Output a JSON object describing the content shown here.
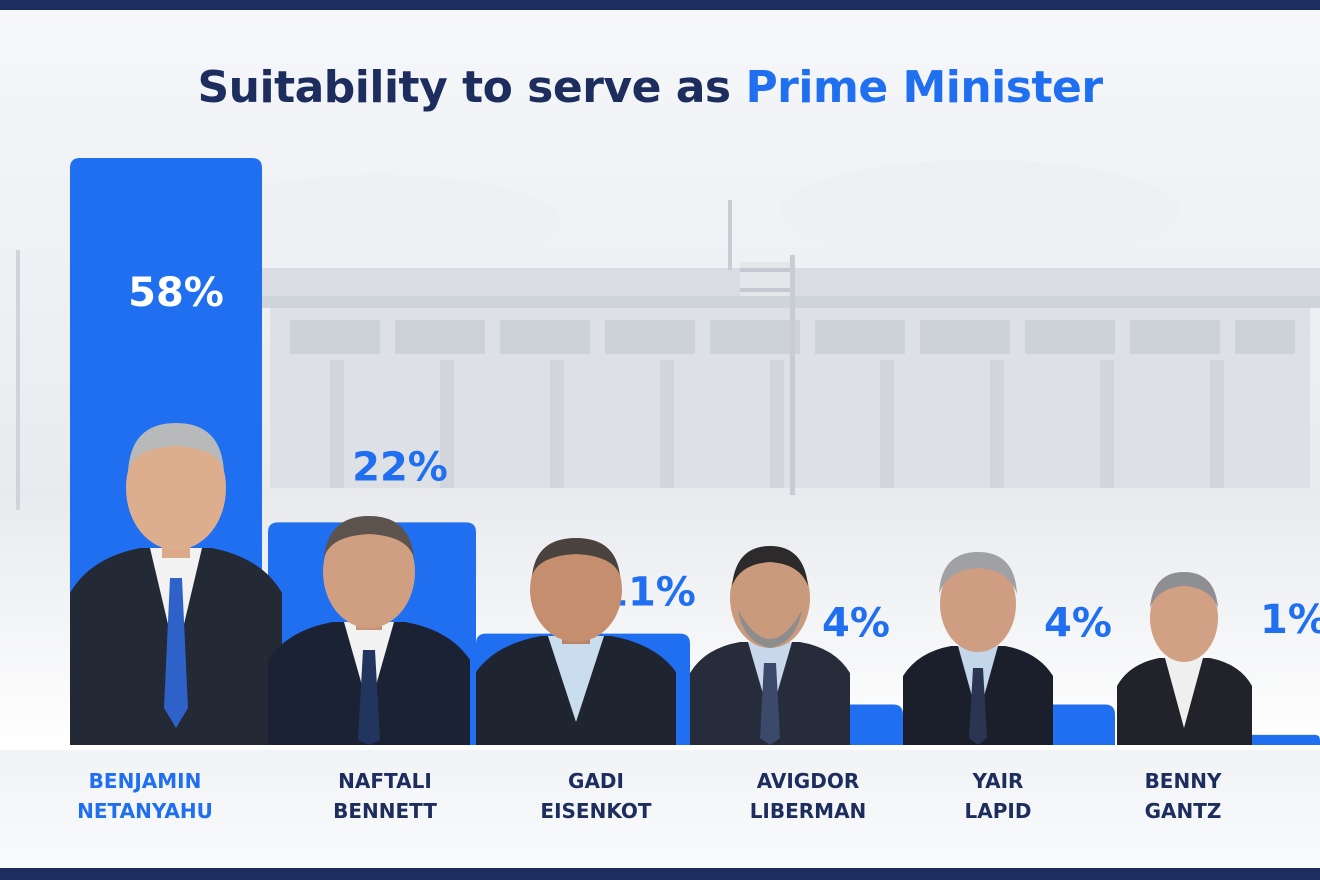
{
  "title": {
    "part1": "Suitability to serve as ",
    "part2": "Prime Minister"
  },
  "colors": {
    "navy": "#1c2d5e",
    "accent_blue": "#1f6ff0",
    "background_tint": "#e6e9ee"
  },
  "chart_data": {
    "type": "bar",
    "title": "Suitability to serve as Prime Minister",
    "categories": [
      "BENJAMIN NETANYAHU",
      "NAFTALI BENNETT",
      "GADI EISENKOT",
      "AVIGDOR LIBERMAN",
      "YAIR LAPID",
      "BENNY GANTZ"
    ],
    "values": [
      58,
      22,
      11,
      4,
      4,
      1
    ],
    "value_labels": [
      "58%",
      "22%",
      "11%",
      "4%",
      "4%",
      "1%"
    ],
    "unit": "%",
    "ylim": [
      0,
      58
    ],
    "grid": false,
    "legend": "none"
  },
  "candidates": [
    {
      "first": "BENJAMIN",
      "last": "NETANYAHU",
      "portrait": "portrait-photo-icon"
    },
    {
      "first": "NAFTALI",
      "last": "BENNETT",
      "portrait": "portrait-photo-icon"
    },
    {
      "first": "GADI",
      "last": "EISENKOT",
      "portrait": "portrait-photo-icon"
    },
    {
      "first": "AVIGDOR",
      "last": "LIBERMAN",
      "portrait": "portrait-photo-icon"
    },
    {
      "first": "YAIR",
      "last": "LAPID",
      "portrait": "portrait-photo-icon"
    },
    {
      "first": "BENNY",
      "last": "GANTZ",
      "portrait": "portrait-photo-icon"
    }
  ]
}
